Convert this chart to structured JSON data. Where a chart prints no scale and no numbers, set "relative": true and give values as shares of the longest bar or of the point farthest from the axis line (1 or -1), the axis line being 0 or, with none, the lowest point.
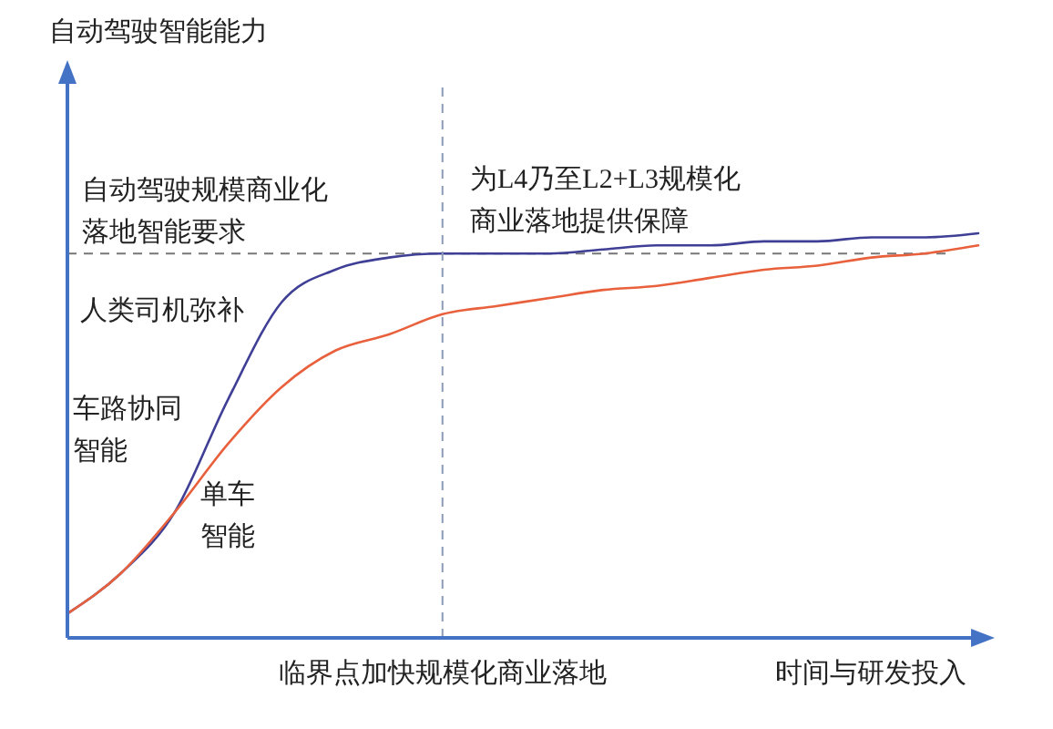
{
  "chart_data": {
    "type": "line",
    "relative": true,
    "xlabel": "时间与研发投入",
    "categories": [
      null,
      null,
      null,
      null,
      null,
      null,
      null,
      null,
      null,
      null,
      null,
      null,
      null,
      null,
      null,
      null,
      null,
      null
    ],
    "series": [
      {
        "name": "车路协同智能",
        "color": "#3f3f96",
        "values": [
          0.06,
          0.16,
          0.31,
          0.59,
          0.83,
          0.91,
          0.94,
          0.95,
          0.95,
          0.95,
          0.96,
          0.97,
          0.97,
          0.98,
          0.98,
          0.99,
          0.99,
          1
        ]
      },
      {
        "name": "单车智能",
        "color": "#e8603c",
        "values": [
          0.06,
          0.16,
          0.31,
          0.48,
          0.62,
          0.71,
          0.75,
          0.8,
          0.82,
          0.84,
          0.86,
          0.87,
          0.89,
          0.91,
          0.92,
          0.94,
          0.95,
          0.97
        ]
      }
    ],
    "ref_lines": [
      {
        "axis": "y",
        "value": 0.95,
        "label": "自动驾驶规模商业化落地智能要求",
        "color": "#777777",
        "line_style": "dashed"
      }
    ],
    "annotations": [
      "自动驾驶智能能力",
      "为L4乃至L2+L3规模化商业落地提供保障",
      "人类司机弥补",
      "临界点加快规模化商业落地"
    ],
    "marker": "none",
    "line_style": "solid"
  }
}
